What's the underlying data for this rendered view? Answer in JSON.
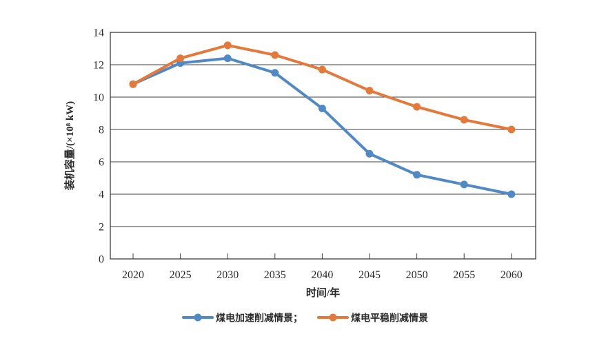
{
  "figure": {
    "background": "#ffffff"
  },
  "chart_data": {
    "type": "line",
    "title": "",
    "categories": [
      "2020",
      "2025",
      "2030",
      "2035",
      "2040",
      "2045",
      "2050",
      "2055",
      "2060"
    ],
    "series": [
      {
        "name": "煤电加速削减情景",
        "legend_label": "煤电加速削减情景；",
        "color": "#5189C4",
        "marker": "circle",
        "values": [
          10.8,
          12.1,
          12.4,
          11.5,
          9.3,
          6.5,
          5.2,
          4.6,
          4.0
        ]
      },
      {
        "name": "煤电平稳削减情景",
        "legend_label": "煤电平稳削减情景",
        "color": "#E4793C",
        "marker": "circle",
        "values": [
          10.8,
          12.4,
          13.2,
          12.6,
          11.7,
          10.4,
          9.4,
          8.6,
          8.0
        ]
      }
    ],
    "xlabel": "时间/年",
    "ylabel": "装机容量/(×10⁸ kW)",
    "ylim": [
      0,
      14
    ],
    "yticks": [
      0,
      2,
      4,
      6,
      8,
      10,
      12,
      14
    ],
    "grid": true,
    "legend_position": "bottom",
    "axis_color": "#3c3c3c",
    "text_color": "#2b2b2b"
  }
}
